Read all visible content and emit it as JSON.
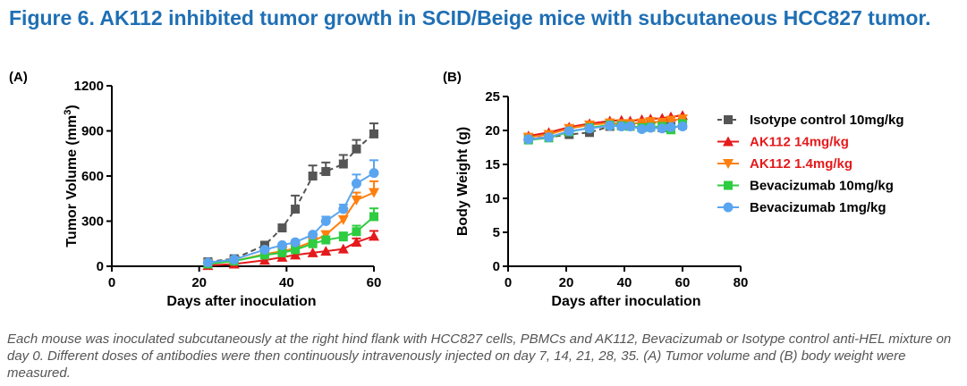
{
  "figure": {
    "title": "Figure 6. AK112 inhibited tumor growth in SCID/Beige mice with subcutaneous HCC827 tumor.",
    "caption": "Each mouse was inoculated subcutaneously at the right hind flank with HCC827 cells, PBMCs and AK112, Bevacizumab or Isotype control anti-HEL mixture on day 0. Different doses of antibodies were then continuously intravenously injected on day 7, 14, 21, 28, 35. (A) Tumor volume and (B) body weight were measured."
  },
  "panels": {
    "a_label": "(A)",
    "b_label": "(B)"
  },
  "colors": {
    "title": "#1f6fb4",
    "isotype": "#555555",
    "ak112_14": "#e41a1c",
    "ak112_1_4": "#ff7f0e",
    "bev_10": "#2ecc40",
    "bev_1": "#5aa5f0"
  },
  "legend": [
    {
      "label": "Isotype control 10mg/kg",
      "color": "#555555",
      "marker": "square",
      "label_color": "#000000"
    },
    {
      "label": "AK112 14mg/kg",
      "color": "#e41a1c",
      "marker": "triangle-up",
      "label_color": "#e41a1c"
    },
    {
      "label": "AK112 1.4mg/kg",
      "color": "#ff7f0e",
      "marker": "triangle-down",
      "label_color": "#e41a1c"
    },
    {
      "label": "Bevacizumab 10mg/kg",
      "color": "#2ecc40",
      "marker": "square",
      "label_color": "#000000"
    },
    {
      "label": "Bevacizumab 1mg/kg",
      "color": "#5aa5f0",
      "marker": "circle",
      "label_color": "#000000"
    }
  ],
  "chart_data": [
    {
      "type": "line",
      "panel": "A",
      "title": "",
      "xlabel": "Days after inoculation",
      "ylabel": "Tumor Volume (mm",
      "ylabel_sup": "3",
      "ylabel_end": ")",
      "xlim": [
        0,
        60
      ],
      "ylim": [
        0,
        1200
      ],
      "xticks": [
        0,
        20,
        40,
        60
      ],
      "yticks": [
        0,
        300,
        600,
        900,
        1200
      ],
      "series": [
        {
          "name": "Isotype control 10mg/kg",
          "marker": "square",
          "color": "#555555",
          "dashed": true,
          "x": [
            22,
            28,
            35,
            39,
            42,
            46,
            49,
            53,
            56,
            60
          ],
          "y": [
            30,
            50,
            140,
            255,
            380,
            600,
            630,
            680,
            780,
            880
          ],
          "err": [
            0,
            0,
            0,
            0,
            90,
            70,
            60,
            60,
            60,
            70
          ]
        },
        {
          "name": "AK112 14mg/kg",
          "marker": "triangle-up",
          "color": "#e41a1c",
          "dashed": false,
          "x": [
            22,
            28,
            35,
            39,
            42,
            46,
            49,
            53,
            56,
            60
          ],
          "y": [
            5,
            15,
            40,
            60,
            75,
            90,
            100,
            115,
            160,
            200
          ],
          "err": [
            0,
            0,
            0,
            0,
            0,
            0,
            0,
            0,
            25,
            35
          ]
        },
        {
          "name": "AK112 1.4mg/kg",
          "marker": "triangle-down",
          "color": "#ff7f0e",
          "dashed": false,
          "x": [
            22,
            28,
            35,
            39,
            42,
            46,
            49,
            53,
            56,
            60
          ],
          "y": [
            20,
            35,
            80,
            100,
            120,
            165,
            210,
            310,
            440,
            490
          ],
          "err": [
            0,
            0,
            0,
            0,
            0,
            0,
            0,
            0,
            50,
            75
          ]
        },
        {
          "name": "Bevacizumab 10mg/kg",
          "marker": "square",
          "color": "#2ecc40",
          "dashed": false,
          "x": [
            22,
            28,
            35,
            39,
            42,
            46,
            49,
            53,
            56,
            60
          ],
          "y": [
            15,
            35,
            75,
            90,
            110,
            150,
            175,
            195,
            230,
            330
          ],
          "err": [
            0,
            0,
            0,
            0,
            0,
            0,
            0,
            30,
            40,
            55
          ]
        },
        {
          "name": "Bevacizumab 1mg/kg",
          "marker": "circle",
          "color": "#5aa5f0",
          "dashed": false,
          "x": [
            22,
            28,
            35,
            39,
            42,
            46,
            49,
            53,
            56,
            60
          ],
          "y": [
            25,
            45,
            110,
            140,
            160,
            210,
            300,
            380,
            550,
            620
          ],
          "err": [
            0,
            0,
            0,
            0,
            0,
            0,
            30,
            30,
            60,
            85
          ]
        }
      ]
    },
    {
      "type": "line",
      "panel": "B",
      "title": "",
      "xlabel": "Days after inoculation",
      "ylabel": "Body Weight (g)",
      "xlim": [
        0,
        80
      ],
      "ylim": [
        0,
        25
      ],
      "xticks": [
        0,
        20,
        40,
        60,
        80
      ],
      "yticks": [
        0,
        5,
        10,
        15,
        20,
        25
      ],
      "series": [
        {
          "name": "Isotype control 10mg/kg",
          "marker": "square",
          "color": "#555555",
          "dashed": true,
          "x": [
            7,
            14,
            21,
            28,
            35,
            39,
            42,
            46,
            49,
            53,
            56,
            60
          ],
          "y": [
            18.8,
            19.0,
            19.4,
            19.7,
            20.6,
            20.7,
            20.6,
            20.4,
            20.5,
            20.4,
            20.6,
            20.8
          ]
        },
        {
          "name": "AK112 14mg/kg",
          "marker": "triangle-up",
          "color": "#e41a1c",
          "dashed": false,
          "x": [
            7,
            14,
            21,
            28,
            35,
            39,
            42,
            46,
            49,
            53,
            56,
            60
          ],
          "y": [
            19.2,
            19.7,
            20.5,
            21.0,
            21.4,
            21.5,
            21.4,
            21.6,
            21.7,
            21.8,
            22.0,
            22.2
          ]
        },
        {
          "name": "AK112 1.4mg/kg",
          "marker": "triangle-down",
          "color": "#ff7f0e",
          "dashed": false,
          "x": [
            7,
            14,
            21,
            28,
            35,
            39,
            42,
            46,
            49,
            53,
            56,
            60
          ],
          "y": [
            19.0,
            19.4,
            20.3,
            20.8,
            21.1,
            21.0,
            21.0,
            21.1,
            21.3,
            21.2,
            21.5,
            21.7
          ]
        },
        {
          "name": "Bevacizumab 10mg/kg",
          "marker": "square",
          "color": "#2ecc40",
          "dashed": false,
          "x": [
            7,
            14,
            21,
            28,
            35,
            39,
            42,
            46,
            49,
            53,
            56,
            60
          ],
          "y": [
            18.6,
            18.9,
            19.8,
            20.4,
            20.8,
            20.7,
            20.6,
            20.4,
            20.5,
            20.6,
            20.1,
            21.0
          ]
        },
        {
          "name": "Bevacizumab 1mg/kg",
          "marker": "circle",
          "color": "#5aa5f0",
          "dashed": false,
          "x": [
            7,
            14,
            21,
            28,
            35,
            39,
            42,
            46,
            49,
            53,
            56,
            60
          ],
          "y": [
            18.7,
            19.0,
            19.9,
            20.3,
            20.7,
            20.6,
            20.6,
            20.2,
            20.4,
            20.3,
            20.5,
            20.6
          ]
        }
      ]
    }
  ]
}
